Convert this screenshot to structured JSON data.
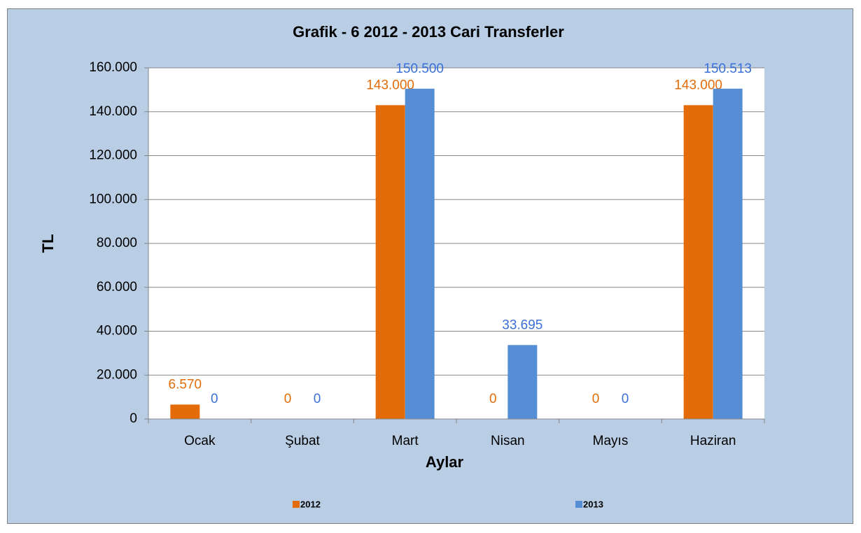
{
  "chart_data": {
    "type": "bar",
    "title": "Grafik - 6   2012 - 2013 Cari Transferler",
    "x_label": "Aylar",
    "y_label": "TL",
    "categories": [
      "Ocak",
      "Şubat",
      "Mart",
      "Nisan",
      "Mayıs",
      "Haziran"
    ],
    "series": [
      {
        "name": "2012",
        "color": "#e36c09",
        "label_color": "#e36c09",
        "values": [
          6570,
          0,
          143000,
          0,
          0,
          143000
        ],
        "value_labels": [
          "6.570",
          "0",
          "143.000",
          "0",
          "0",
          "143.000"
        ]
      },
      {
        "name": "2013",
        "color": "#558ed5",
        "label_color": "#3a6fd8",
        "values": [
          0,
          0,
          150500,
          33695,
          0,
          150513
        ],
        "value_labels": [
          "0",
          "0",
          "150.500",
          "33.695",
          "0",
          "150.513"
        ]
      }
    ],
    "ylim": [
      0,
      160000
    ],
    "yticks": [
      0,
      {
        "value": 20000,
        "label": "20.000"
      },
      {
        "value": 40000,
        "label": "40.000"
      },
      {
        "value": 60000,
        "label": "60.000"
      },
      {
        "value": 80000,
        "label": "80.000"
      },
      {
        "value": 100000,
        "label": "100.000"
      },
      {
        "value": 120000,
        "label": "120.000"
      },
      {
        "value": 140000,
        "label": "140.000"
      },
      {
        "value": 160000,
        "label": "160.000"
      }
    ],
    "grid": true,
    "legend": "bottom"
  }
}
